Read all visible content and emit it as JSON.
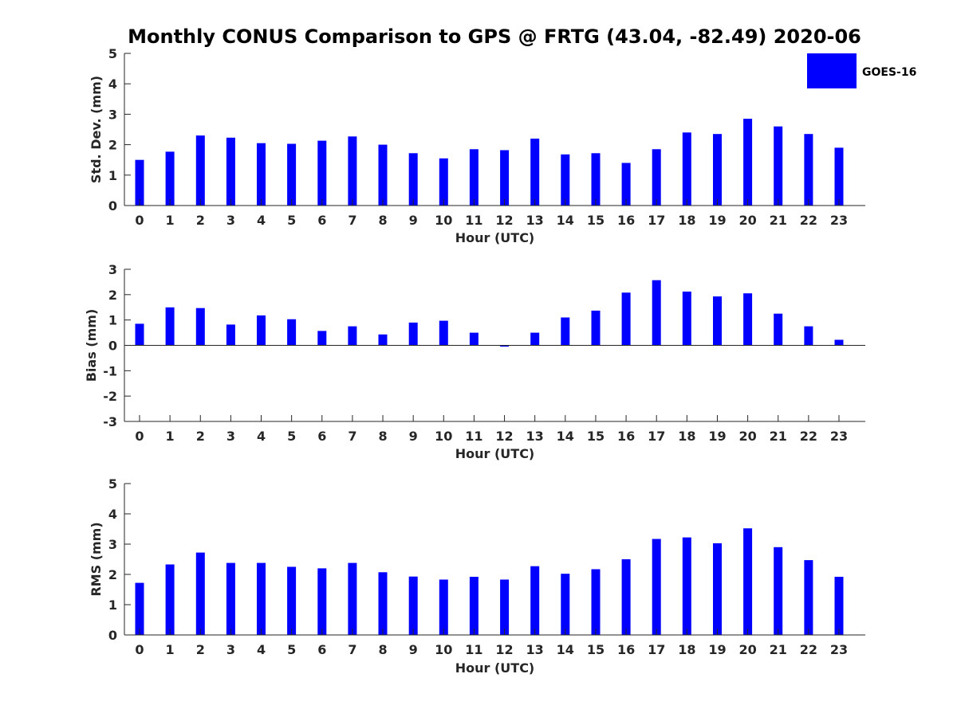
{
  "figure": {
    "title": "Monthly CONUS Comparison to GPS @ FRTG (43.04, -82.49) 2020-06"
  },
  "legend": {
    "label": "GOES-16",
    "color": "#0000ff",
    "position": "top-right"
  },
  "chart_data": [
    {
      "type": "bar",
      "categories": [
        "0",
        "1",
        "2",
        "3",
        "4",
        "5",
        "6",
        "7",
        "8",
        "9",
        "10",
        "11",
        "12",
        "13",
        "14",
        "15",
        "16",
        "17",
        "18",
        "19",
        "20",
        "21",
        "22",
        "23"
      ],
      "series": [
        {
          "name": "GOES-16",
          "values": [
            1.5,
            1.77,
            2.3,
            2.23,
            2.05,
            2.03,
            2.13,
            2.27,
            2.0,
            1.72,
            1.55,
            1.85,
            1.82,
            2.2,
            1.68,
            1.72,
            1.4,
            1.85,
            2.4,
            2.35,
            2.85,
            2.6,
            2.35,
            1.9
          ]
        }
      ],
      "xlabel": "Hour (UTC)",
      "ylabel": "Std. Dev. (mm)",
      "ylim": [
        0,
        5
      ],
      "yticks": [
        "0",
        "1",
        "2",
        "3",
        "4",
        "5"
      ],
      "grid": false
    },
    {
      "type": "bar",
      "categories": [
        "0",
        "1",
        "2",
        "3",
        "4",
        "5",
        "6",
        "7",
        "8",
        "9",
        "10",
        "11",
        "12",
        "13",
        "14",
        "15",
        "16",
        "17",
        "18",
        "19",
        "20",
        "21",
        "22",
        "23"
      ],
      "series": [
        {
          "name": "GOES-16",
          "values": [
            0.85,
            1.5,
            1.47,
            0.82,
            1.18,
            1.03,
            0.57,
            0.75,
            0.43,
            0.9,
            0.97,
            0.5,
            -0.05,
            0.5,
            1.1,
            1.37,
            2.08,
            2.57,
            2.12,
            1.93,
            2.05,
            1.25,
            0.75,
            0.22
          ]
        }
      ],
      "xlabel": "Hour (UTC)",
      "ylabel": "Bias (mm)",
      "ylim": [
        -3,
        3
      ],
      "yticks": [
        "-3",
        "-2",
        "-1",
        "0",
        "1",
        "2",
        "3"
      ],
      "grid": false
    },
    {
      "type": "bar",
      "categories": [
        "0",
        "1",
        "2",
        "3",
        "4",
        "5",
        "6",
        "7",
        "8",
        "9",
        "10",
        "11",
        "12",
        "13",
        "14",
        "15",
        "16",
        "17",
        "18",
        "19",
        "20",
        "21",
        "22",
        "23"
      ],
      "series": [
        {
          "name": "GOES-16",
          "values": [
            1.72,
            2.33,
            2.72,
            2.38,
            2.38,
            2.25,
            2.2,
            2.38,
            2.07,
            1.93,
            1.83,
            1.92,
            1.83,
            2.27,
            2.02,
            2.17,
            2.5,
            3.17,
            3.22,
            3.03,
            3.52,
            2.9,
            2.47,
            1.92
          ]
        }
      ],
      "xlabel": "Hour (UTC)",
      "ylabel": "RMS (mm)",
      "ylim": [
        0,
        5
      ],
      "yticks": [
        "0",
        "1",
        "2",
        "3",
        "4",
        "5"
      ],
      "grid": false
    }
  ]
}
